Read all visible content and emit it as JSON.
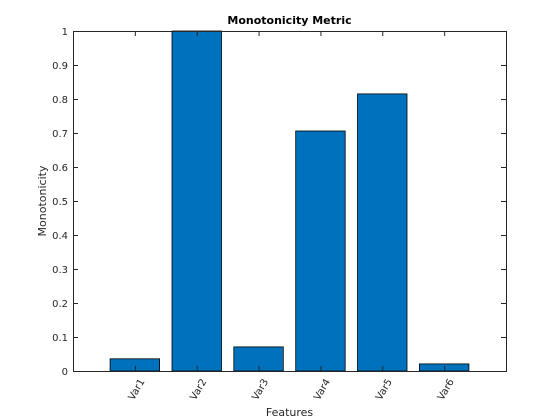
{
  "chart_data": {
    "type": "bar",
    "title": "Monotonicity Metric",
    "xlabel": "Features",
    "ylabel": "Monotonicity",
    "categories": [
      "Var1",
      "Var2",
      "Var3",
      "Var4",
      "Var5",
      "Var6"
    ],
    "values": [
      0.036,
      1.0,
      0.071,
      0.706,
      0.815,
      0.021
    ],
    "ylim": [
      0,
      1
    ],
    "yticks": [
      0,
      0.1,
      0.2,
      0.3,
      0.4,
      0.5,
      0.6,
      0.7,
      0.8,
      0.9,
      1
    ],
    "ytick_labels": [
      "0",
      "0.1",
      "0.2",
      "0.3",
      "0.4",
      "0.5",
      "0.6",
      "0.7",
      "0.8",
      "0.9",
      "1"
    ],
    "grid": false,
    "bar_color": "#0072BD",
    "x_tick_rotation_deg": 60
  }
}
